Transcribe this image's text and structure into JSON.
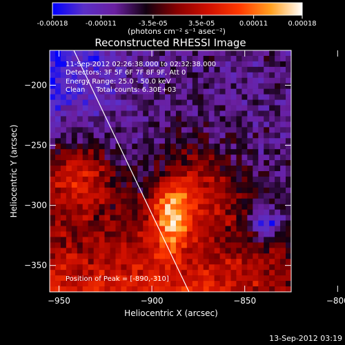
{
  "chart_data": {
    "type": "heatmap",
    "title": "Reconstructed RHESSI Image",
    "xlabel": "Heliocentric X (arcsec)",
    "ylabel": "Heliocentric Y (arcsec)",
    "xlim": [
      -955,
      -825
    ],
    "ylim": [
      -372,
      -171
    ],
    "x_ticks": [
      -950,
      -900,
      -850,
      -800
    ],
    "y_ticks": [
      -200,
      -250,
      -300,
      -350
    ],
    "colorbar": {
      "range": [
        -0.00018,
        0.00018
      ],
      "tick_values": [
        -0.00018,
        -0.00011,
        -3.5e-05,
        3.5e-05,
        0.00011,
        0.00018
      ],
      "tick_labels": [
        "-0.00018",
        "-0.00011",
        "-3.5e-05",
        "3.5e-05",
        "0.00011",
        "0.00018"
      ],
      "unit_label": "(photons cm⁻² s⁻¹ asec⁻²)",
      "colors": [
        "#0000ff",
        "#5a2fc8",
        "#6a1fa0",
        "#120010",
        "#8a0000",
        "#d01000",
        "#ff3a00",
        "#ffa020",
        "#ffffff"
      ]
    },
    "annotations": {
      "time_range": "11-Sep-2012 02:26:38.000 to 02:32:38.000",
      "detectors": "Detectors: 3F 5F 6F 7F 8F 9F, Att 0",
      "energy": "Energy Range: 25.0 - 50.0 keV",
      "method": "Clean     Total counts: 6.30E+03",
      "peak": "Position of Peak = [-890,-310]"
    },
    "limb": [
      [
        -942,
        -171
      ],
      [
        -880,
        -372
      ]
    ],
    "grid": false,
    "peak_position": [
      -890,
      -310
    ]
  },
  "footer": {
    "timestamp": "13-Sep-2012 03:19"
  }
}
